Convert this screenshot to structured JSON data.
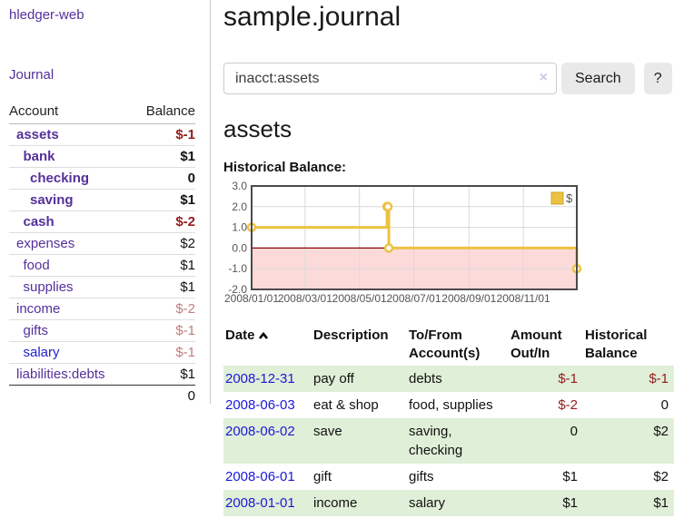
{
  "colors": {
    "purple_link": "#55309b",
    "blue_link": "#2222cc",
    "date_link_blue": "#1b18d8",
    "negative_strong": "#941c1c",
    "negative_soft": "#c07d7d",
    "row_stripe_green": "#e0efd8",
    "series_gold": "#edc240",
    "negative_region_pink": "#fcdada",
    "zero_line_red": "#8b0000"
  },
  "sidebar": {
    "app_title": "hledger-web",
    "journal_label": "Journal",
    "accounts_table": {
      "headers": {
        "account": "Account",
        "balance": "Balance"
      },
      "rows": [
        {
          "name": "assets",
          "balance": "$-1",
          "indent": 0,
          "bold": true,
          "balance_class": "neg-strong",
          "link": "purple"
        },
        {
          "name": "bank",
          "balance": "$1",
          "indent": 1,
          "bold": true,
          "balance_class": "",
          "link": "purple"
        },
        {
          "name": "checking",
          "balance": "0",
          "indent": 2,
          "bold": true,
          "balance_class": "",
          "link": "purple"
        },
        {
          "name": "saving",
          "balance": "$1",
          "indent": 2,
          "bold": true,
          "balance_class": "",
          "link": "purple"
        },
        {
          "name": "cash",
          "balance": "$-2",
          "indent": 1,
          "bold": true,
          "balance_class": "neg-strong",
          "link": "purple"
        },
        {
          "name": "expenses",
          "balance": "$2",
          "indent": 0,
          "bold": false,
          "balance_class": "",
          "link": "purple"
        },
        {
          "name": "food",
          "balance": "$1",
          "indent": 1,
          "bold": false,
          "balance_class": "",
          "link": "purple"
        },
        {
          "name": "supplies",
          "balance": "$1",
          "indent": 1,
          "bold": false,
          "balance_class": "",
          "link": "purple"
        },
        {
          "name": "income",
          "balance": "$-2",
          "indent": 0,
          "bold": false,
          "balance_class": "neg-soft",
          "link": "purple"
        },
        {
          "name": "gifts",
          "balance": "$-1",
          "indent": 1,
          "bold": false,
          "balance_class": "neg-soft",
          "link": "purple"
        },
        {
          "name": "salary",
          "balance": "$-1",
          "indent": 1,
          "bold": false,
          "balance_class": "neg-soft",
          "link": "blue"
        },
        {
          "name": "liabilities:debts",
          "balance": "$1",
          "indent": 0,
          "bold": false,
          "balance_class": "",
          "link": "purple"
        }
      ],
      "total": "0"
    }
  },
  "main": {
    "title": "sample.journal",
    "search": {
      "value": "inacct:assets",
      "clear_icon": "×",
      "button_label": "Search",
      "help_label": "?"
    },
    "account_heading": "assets",
    "chart_heading": "Historical Balance:",
    "register_table": {
      "headers": {
        "date": "Date",
        "description": "Description",
        "accounts": "To/From Account(s)",
        "amount": "Amount Out/In",
        "balance": "Historical Balance"
      },
      "sort": {
        "column": "date",
        "direction": "asc"
      },
      "rows": [
        {
          "date": "2008-12-31",
          "description": "pay off",
          "accounts": "debts",
          "amount": "$-1",
          "amount_class": "neg-strong",
          "balance": "$-1",
          "balance_class": "neg-strong"
        },
        {
          "date": "2008-06-03",
          "description": "eat & shop",
          "accounts": "food, supplies",
          "amount": "$-2",
          "amount_class": "neg-strong",
          "balance": "0",
          "balance_class": ""
        },
        {
          "date": "2008-06-02",
          "description": "save",
          "accounts": "saving, checking",
          "amount": "0",
          "amount_class": "",
          "balance": "$2",
          "balance_class": ""
        },
        {
          "date": "2008-06-01",
          "description": "gift",
          "accounts": "gifts",
          "amount": "$1",
          "amount_class": "",
          "balance": "$2",
          "balance_class": ""
        },
        {
          "date": "2008-01-01",
          "description": "income",
          "accounts": "salary",
          "amount": "$1",
          "amount_class": "",
          "balance": "$1",
          "balance_class": ""
        }
      ]
    }
  },
  "chart_data": {
    "type": "line",
    "title": "Historical Balance",
    "legend": {
      "position": "top-right",
      "entries": [
        "$"
      ]
    },
    "x_range": [
      "2008-01-01",
      "2008-12-31"
    ],
    "ylim": [
      -2,
      3
    ],
    "yticks": [
      3,
      2,
      1,
      0,
      -1,
      -2
    ],
    "xticks": [
      {
        "label": "2008/01/01",
        "date": "2008-01-01"
      },
      {
        "label": "2008/03/01",
        "date": "2008-03-01"
      },
      {
        "label": "2008/05/01",
        "date": "2008-05-01"
      },
      {
        "label": "2008/07/01",
        "date": "2008-07-01"
      },
      {
        "label": "2008/09/01",
        "date": "2008-09-01"
      },
      {
        "label": "2008/11/01",
        "date": "2008-11-01"
      }
    ],
    "series": [
      {
        "name": "$",
        "color": "#edc240",
        "step": true,
        "points": [
          [
            "2008-01-01",
            1
          ],
          [
            "2008-06-01",
            2
          ],
          [
            "2008-06-02",
            2
          ],
          [
            "2008-06-03",
            0
          ],
          [
            "2008-12-31",
            -1
          ]
        ]
      }
    ],
    "grid": true,
    "negative_region_color": "#fcdada",
    "zero_line_color": "#8b0000"
  }
}
